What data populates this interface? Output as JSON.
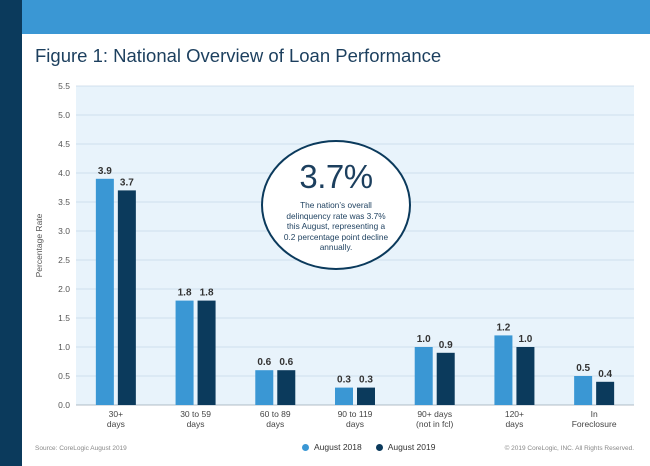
{
  "header": {
    "title": "Figure 1: National Overview of Loan Performance"
  },
  "colors": {
    "series2018": "#3a97d4",
    "series2019": "#0b3a5c",
    "plotBg": "#e8f3fb",
    "accent": "#0b3a5c"
  },
  "callout": {
    "big": "3.7%",
    "text": "The nation’s overall delinquency rate was 3.7% this August, representing a 0.2 percentage point decline annually."
  },
  "footer": {
    "source": "Source: CoreLogic August 2019",
    "copyright": "© 2019 CoreLogic, INC. All Rights Reserved."
  },
  "chart_data": {
    "type": "bar",
    "title": "Figure 1: National Overview of Loan Performance",
    "xlabel": "",
    "ylabel": "Percentage Rate",
    "ylim": [
      0,
      5.5
    ],
    "yticks": [
      "0.0",
      "0.5",
      "1.0",
      "1.5",
      "2.0",
      "2.5",
      "3.0",
      "3.5",
      "4.0",
      "4.5",
      "5.0",
      "5.5"
    ],
    "grid": true,
    "legend": "bottom-center",
    "categories": [
      [
        "30+",
        "days"
      ],
      [
        "30 to 59",
        "days"
      ],
      [
        "60 to 89",
        "days"
      ],
      [
        "90 to 119",
        "days"
      ],
      [
        "90+ days",
        "(not in fcl)"
      ],
      [
        "120+",
        "days"
      ],
      [
        "In",
        "Foreclosure"
      ]
    ],
    "series": [
      {
        "name": "August 2018",
        "values": [
          3.9,
          1.8,
          0.6,
          0.3,
          1.0,
          1.2,
          0.5
        ],
        "labels": [
          "3.9",
          "1.8",
          "0.6",
          "0.3",
          "1.0",
          "1.2",
          "0.5"
        ]
      },
      {
        "name": "August 2019",
        "values": [
          3.7,
          1.8,
          0.6,
          0.3,
          0.9,
          1.0,
          0.4
        ],
        "labels": [
          "3.7",
          "1.8",
          "0.6",
          "0.3",
          "0.9",
          "1.0",
          "0.4"
        ]
      }
    ]
  }
}
